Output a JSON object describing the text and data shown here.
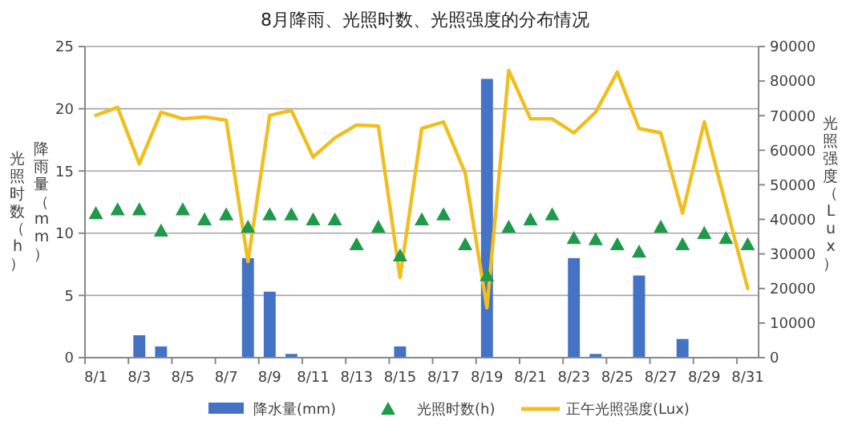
{
  "chart_data": {
    "type": "bar",
    "title": "8月降雨、光照时数、光照强度的分布情况",
    "ylabel": "降雨量（mm）",
    "y2label": "光照强度（Lux）",
    "annotations": [
      "光照时数（h）"
    ],
    "categories": [
      "8/1",
      null,
      "8/3",
      null,
      "8/5",
      null,
      "8/7",
      null,
      "8/9",
      null,
      "8/11",
      null,
      "8/13",
      null,
      "8/15",
      null,
      "8/17",
      null,
      "8/19",
      null,
      "8/21",
      null,
      "8/23",
      null,
      "8/25",
      null,
      "8/27",
      null,
      "8/29",
      null,
      "8/31"
    ],
    "ylim": [
      0,
      25
    ],
    "yticks": [
      0,
      5,
      10,
      15,
      20,
      25
    ],
    "y2lim": [
      0,
      90000
    ],
    "y2ticks": [
      0,
      10000,
      20000,
      30000,
      40000,
      50000,
      60000,
      70000,
      80000,
      90000
    ],
    "grid": "y",
    "legend": "bottom",
    "series": [
      {
        "name": "降水量(mm)",
        "color": "#4472c4",
        "values": [
          0,
          0,
          1.8,
          0.9,
          0,
          0,
          0,
          8.0,
          5.3,
          0.3,
          0,
          0,
          0,
          0,
          0.9,
          0,
          0,
          0,
          22.4,
          0,
          0,
          0,
          8.0,
          0.3,
          0,
          6.6,
          0,
          1.5,
          0,
          0,
          0
        ]
      },
      {
        "name": "光照时数(h)",
        "type": "scatter",
        "marker": "triangle",
        "color": "#1e9a4a",
        "values": [
          11.6,
          11.9,
          11.9,
          10.2,
          11.9,
          11.1,
          11.5,
          10.5,
          11.5,
          11.5,
          11.1,
          11.1,
          9.1,
          10.5,
          8.2,
          11.1,
          11.5,
          9.1,
          6.6,
          10.5,
          11.1,
          11.5,
          9.6,
          9.5,
          9.1,
          8.5,
          10.5,
          9.1,
          10.0,
          9.6,
          9.1
        ]
      },
      {
        "name": "正午光照强度(Lux)",
        "type": "line",
        "axis": "y2",
        "marker": "none",
        "line_style": "solid",
        "color": "#f0be1e",
        "values": [
          70100,
          72400,
          56100,
          71000,
          69100,
          69600,
          68700,
          27800,
          70100,
          71500,
          58000,
          63600,
          67300,
          67000,
          23200,
          66300,
          68200,
          53400,
          14400,
          83100,
          69100,
          69100,
          65000,
          71000,
          82600,
          66300,
          65000,
          41800,
          68200,
          44000,
          20000
        ]
      }
    ]
  }
}
